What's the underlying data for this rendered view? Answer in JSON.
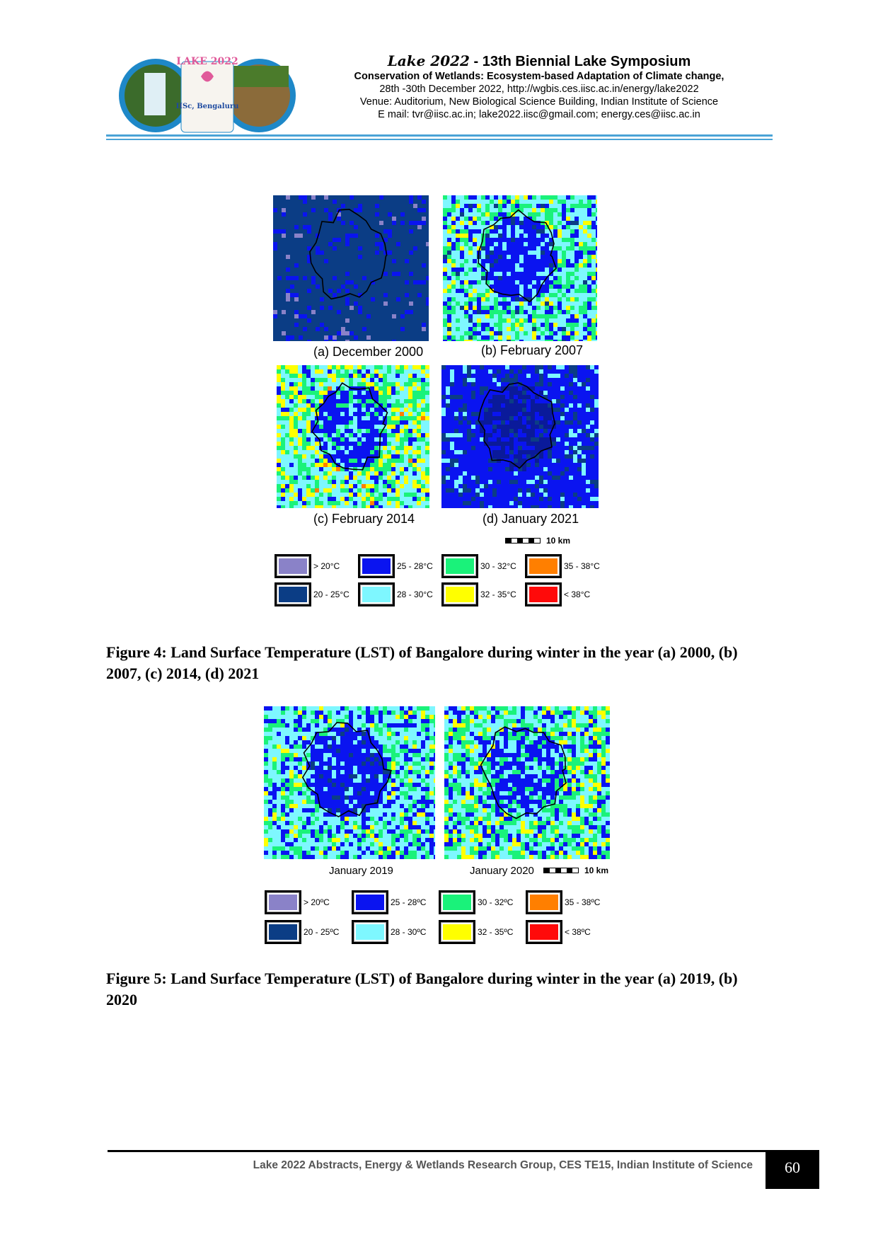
{
  "header": {
    "title_prefix": "Lake 2022",
    "title_rest": " - 13th Biennial Lake Symposium",
    "subtitle": "Conservation of Wetlands: Ecosystem-based Adaptation of Climate change,",
    "dates": "28th -30th December 2022, http://wgbis.ces.iisc.ac.in/energy/lake2022",
    "venue": "Venue: Auditorium, New Biological Science Building, Indian Institute of Science",
    "email": "E mail: tvr@iisc.ac.in; lake2022.iisc@gmail.com; energy.ces@iisc.ac.in",
    "logo_text": "LAKE 2022",
    "logo_sub": "IISc, Bengaluru"
  },
  "figure4": {
    "panels": [
      {
        "label": "(a) December 2000"
      },
      {
        "label": "(b) February 2007"
      },
      {
        "label": "(c) February 2014"
      },
      {
        "label": "(d) January 2021"
      }
    ],
    "scale": "10  km",
    "legend": [
      {
        "text": "> 20°C",
        "color": "#8a82c8"
      },
      {
        "text": "20 - 25°C",
        "color": "#0b3d85"
      },
      {
        "text": "25 - 28°C",
        "color": "#0a14f0"
      },
      {
        "text": "28 - 30°C",
        "color": "#7ef7ff"
      },
      {
        "text": "30 - 32°C",
        "color": "#1af27a"
      },
      {
        "text": "32 - 35°C",
        "color": "#ffff00"
      },
      {
        "text": "35 - 38°C",
        "color": "#ff7f00"
      },
      {
        "text": "< 38°C",
        "color": "#ff0a0a"
      }
    ],
    "caption": "Figure 4: Land Surface Temperature (LST) of Bangalore during winter in the year (a) 2000, (b) 2007, (c) 2014, (d) 2021"
  },
  "figure5": {
    "panels": [
      {
        "label": "January 2019"
      },
      {
        "label": "January 2020"
      }
    ],
    "scale": "10  km",
    "legend": [
      {
        "text": "> 20ºC",
        "color": "#8a82c8"
      },
      {
        "text": "20 - 25ºC",
        "color": "#0b3d85"
      },
      {
        "text": "25 - 28ºC",
        "color": "#0a14f0"
      },
      {
        "text": "28 - 30ºC",
        "color": "#7ef7ff"
      },
      {
        "text": "30 - 32ºC",
        "color": "#1af27a"
      },
      {
        "text": "32 - 35ºC",
        "color": "#ffff00"
      },
      {
        "text": "35 - 38ºC",
        "color": "#ff7f00"
      },
      {
        "text": "< 38ºC",
        "color": "#ff0a0a"
      }
    ],
    "caption": "Figure 5: Land Surface Temperature (LST) of Bangalore during winter in the year (a) 2019, (b) 2020"
  },
  "footer": {
    "text": "Lake 2022 Abstracts, Energy & Wetlands Research Group, CES TE15, Indian Institute of Science",
    "page": "60"
  }
}
